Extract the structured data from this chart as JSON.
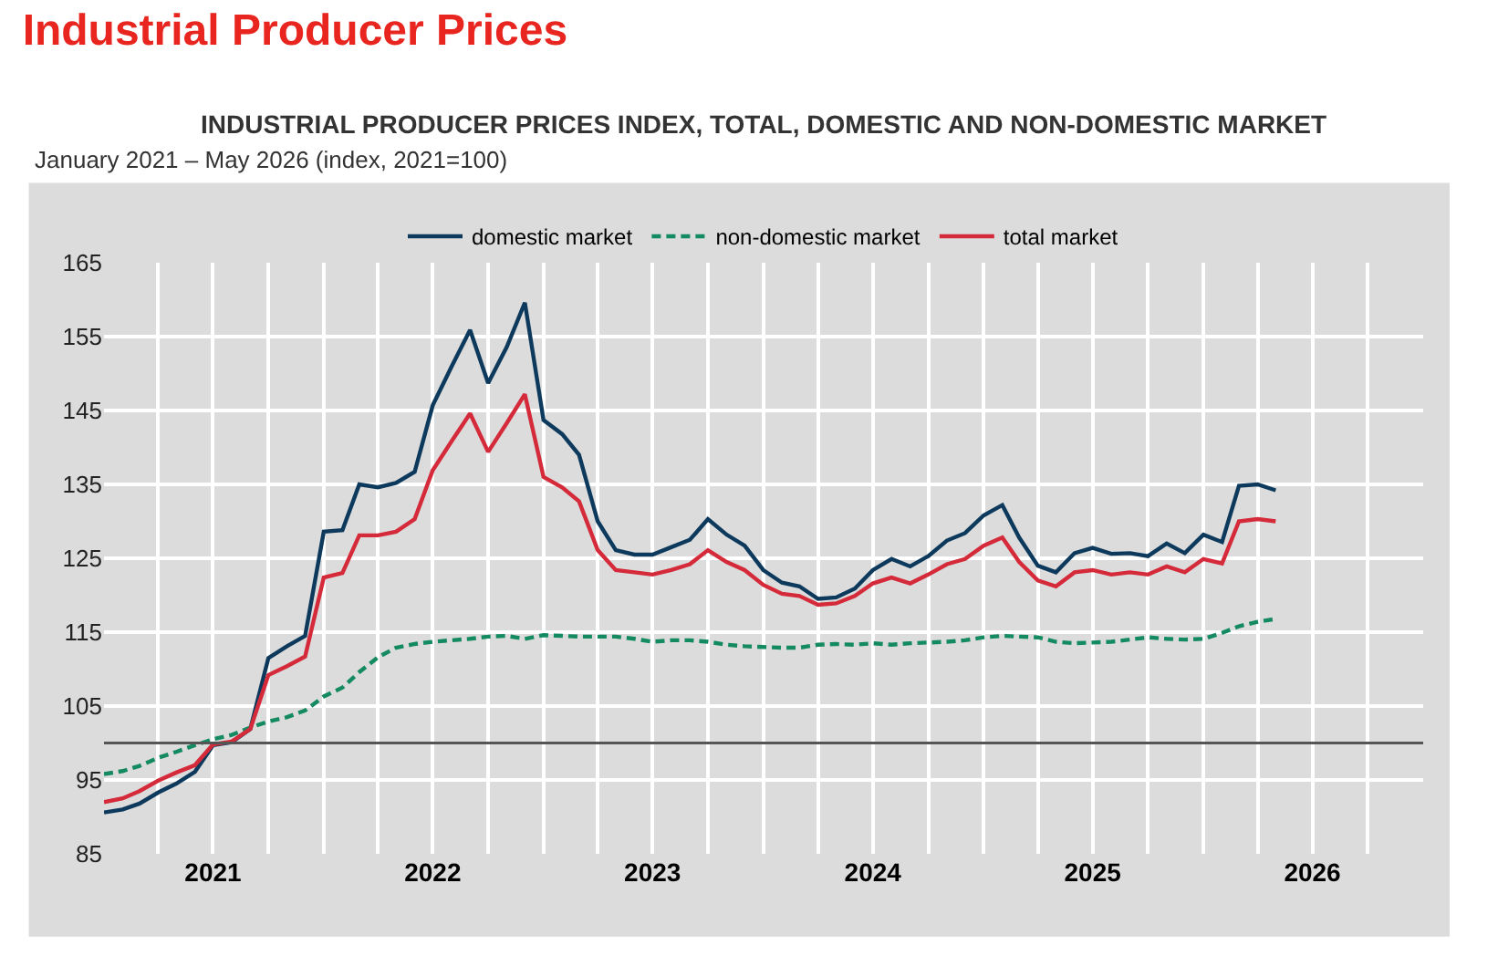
{
  "chart_data": {
    "type": "line",
    "title": "Industrial Producer Prices",
    "subtitle": "INDUSTRIAL PRODUCER PRICES INDEX, TOTAL, DOMESTIC AND NON-DOMESTIC MARKET",
    "annotations": [
      "January 2021 – May 2026 (index, 2021=100)"
    ],
    "x": [
      "2021-01",
      "2021-02",
      "2021-03",
      "2021-04",
      "2021-05",
      "2021-06",
      "2021-07",
      "2021-08",
      "2021-09",
      "2021-10",
      "2021-11",
      "2021-12",
      "2022-01",
      "2022-02",
      "2022-03",
      "2022-04",
      "2022-05",
      "2022-06",
      "2022-07",
      "2022-08",
      "2022-09",
      "2022-10",
      "2022-11",
      "2022-12",
      "2023-01",
      "2023-02",
      "2023-03",
      "2023-04",
      "2023-05",
      "2023-06",
      "2023-07",
      "2023-08",
      "2023-09",
      "2023-10",
      "2023-11",
      "2023-12",
      "2024-01",
      "2024-02",
      "2024-03",
      "2024-04",
      "2024-05",
      "2024-06",
      "2024-07",
      "2024-08",
      "2024-09",
      "2024-10",
      "2024-11",
      "2024-12",
      "2025-01",
      "2025-02",
      "2025-03",
      "2025-04",
      "2025-05",
      "2025-06",
      "2025-07",
      "2025-08",
      "2025-09",
      "2025-10",
      "2025-11",
      "2025-12",
      "2026-01",
      "2026-02",
      "2026-03",
      "2026-04",
      "2026-05"
    ],
    "series": [
      {
        "name": "domestic market",
        "color": "#0d3a5c",
        "line_style": "solid",
        "values": [
          90.6,
          91.0,
          91.8,
          93.3,
          94.5,
          96.1,
          99.7,
          100.1,
          101.9,
          111.5,
          113.1,
          114.5,
          128.6,
          128.8,
          135.0,
          134.6,
          135.2,
          136.7,
          145.7,
          150.9,
          155.9,
          148.7,
          153.6,
          159.6,
          143.7,
          141.8,
          139.0,
          130.0,
          126.1,
          125.5,
          125.5,
          126.5,
          127.5,
          130.3,
          128.2,
          126.7,
          123.4,
          121.7,
          121.2,
          119.5,
          119.7,
          120.9,
          123.4,
          124.9,
          123.9,
          125.3,
          127.4,
          128.4,
          130.8,
          132.2,
          127.8,
          124.0,
          123.1,
          125.7,
          126.4,
          125.6,
          125.7,
          125.3,
          127.0,
          125.7,
          128.2,
          127.2,
          134.8,
          135.0,
          134.2
        ]
      },
      {
        "name": "non-domestic market",
        "color": "#138a60",
        "line_style": "dashed",
        "values": [
          95.8,
          96.2,
          96.9,
          98.0,
          98.8,
          99.7,
          100.5,
          101.1,
          102.1,
          102.9,
          103.5,
          104.4,
          106.3,
          107.5,
          109.6,
          111.6,
          112.9,
          113.4,
          113.7,
          113.9,
          114.1,
          114.4,
          114.5,
          114.1,
          114.6,
          114.5,
          114.4,
          114.4,
          114.4,
          114.1,
          113.7,
          113.9,
          113.9,
          113.7,
          113.3,
          113.1,
          113.0,
          112.9,
          112.9,
          113.3,
          113.4,
          113.3,
          113.5,
          113.3,
          113.5,
          113.6,
          113.7,
          113.9,
          114.3,
          114.5,
          114.4,
          114.3,
          113.7,
          113.5,
          113.6,
          113.7,
          114.0,
          114.3,
          114.1,
          114.0,
          114.1,
          114.9,
          115.8,
          116.4,
          116.8
        ]
      },
      {
        "name": "total market",
        "color": "#d42a3a",
        "line_style": "solid",
        "values": [
          92.0,
          92.5,
          93.5,
          94.9,
          96.0,
          97.0,
          99.8,
          100.2,
          101.9,
          109.2,
          110.4,
          111.7,
          122.4,
          123.0,
          128.1,
          128.1,
          128.6,
          130.3,
          136.9,
          140.8,
          144.6,
          139.4,
          143.3,
          147.2,
          136.0,
          134.6,
          132.7,
          126.1,
          123.4,
          123.1,
          122.8,
          123.4,
          124.2,
          126.1,
          124.5,
          123.4,
          121.4,
          120.2,
          119.9,
          118.7,
          118.9,
          119.9,
          121.6,
          122.4,
          121.6,
          122.8,
          124.2,
          124.9,
          126.7,
          127.8,
          124.5,
          122.0,
          121.2,
          123.1,
          123.4,
          122.8,
          123.1,
          122.8,
          123.9,
          123.1,
          124.9,
          124.3,
          130.0,
          130.3,
          130.0
        ]
      }
    ],
    "xlim": [
      "2021-01-01",
      "2027-01-01"
    ],
    "xticks": [
      {
        "value": "2021-04-01",
        "label": null
      },
      {
        "value": "2021-07-01",
        "label": "2021"
      },
      {
        "value": "2021-10-01",
        "label": null
      },
      {
        "value": "2022-01-01",
        "label": null
      },
      {
        "value": "2022-04-01",
        "label": null
      },
      {
        "value": "2022-07-01",
        "label": "2022"
      },
      {
        "value": "2022-10-01",
        "label": null
      },
      {
        "value": "2023-01-01",
        "label": null
      },
      {
        "value": "2023-04-01",
        "label": null
      },
      {
        "value": "2023-07-01",
        "label": "2023"
      },
      {
        "value": "2023-10-01",
        "label": null
      },
      {
        "value": "2024-01-01",
        "label": null
      },
      {
        "value": "2024-04-01",
        "label": null
      },
      {
        "value": "2024-07-01",
        "label": "2024"
      },
      {
        "value": "2024-10-01",
        "label": null
      },
      {
        "value": "2025-01-01",
        "label": null
      },
      {
        "value": "2025-04-01",
        "label": null
      },
      {
        "value": "2025-07-01",
        "label": "2025"
      },
      {
        "value": "2025-10-01",
        "label": null
      },
      {
        "value": "2026-01-01",
        "label": null
      },
      {
        "value": "2026-04-01",
        "label": null
      },
      {
        "value": "2026-07-01",
        "label": "2026"
      },
      {
        "value": "2026-10-01",
        "label": null
      }
    ],
    "ylim": [
      85,
      165
    ],
    "yticks": [
      85,
      95,
      105,
      115,
      125,
      135,
      145,
      155,
      165
    ],
    "ref_lines": [
      {
        "axis": "y",
        "value": 100,
        "color": "#555555"
      }
    ],
    "grid": true,
    "legend": "top",
    "marker": "none"
  }
}
